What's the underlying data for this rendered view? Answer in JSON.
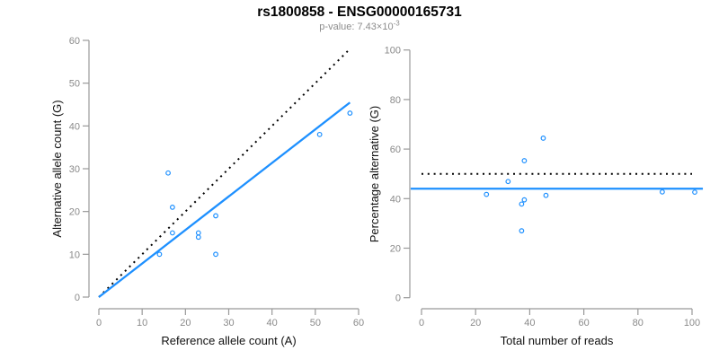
{
  "header": {
    "title": "rs1800858 - ENSG00000165731",
    "subtitle_prefix": "p-value: 7.43×10",
    "subtitle_exponent": "-3"
  },
  "colors": {
    "point_blue": "#1E90FF",
    "line_blue": "#1E90FF",
    "dotted_black": "#000000",
    "axis_gray": "#999999",
    "tick_label_gray": "#8a8a8a",
    "axis_title_black": "#111111"
  },
  "chart_data": [
    {
      "type": "scatter",
      "name": "allele-counts-scatter",
      "panel": "left",
      "xlabel": "Reference allele count (A)",
      "ylabel": "Alternative allele count (G)",
      "xlim": [
        0,
        60
      ],
      "ylim": [
        0,
        60
      ],
      "xticks": [
        0,
        10,
        20,
        30,
        40,
        50,
        60
      ],
      "yticks": [
        0,
        10,
        20,
        30,
        40,
        50,
        60
      ],
      "grid": false,
      "points": [
        [
          16,
          29
        ],
        [
          17,
          21
        ],
        [
          17,
          15
        ],
        [
          23,
          15
        ],
        [
          23,
          14
        ],
        [
          27,
          19
        ],
        [
          14,
          10
        ],
        [
          27,
          10
        ],
        [
          51,
          38
        ],
        [
          58,
          43
        ]
      ],
      "lines": [
        {
          "name": "identity-line",
          "slope": 1,
          "intercept": 0,
          "x_range": [
            0,
            58
          ],
          "style": "dotted",
          "color_key": "dotted_black"
        },
        {
          "name": "fit-line",
          "slope": 0.784,
          "intercept": 0,
          "x_range": [
            0,
            58
          ],
          "style": "solid",
          "color_key": "line_blue"
        }
      ]
    },
    {
      "type": "scatter",
      "name": "percentage-vs-reads-scatter",
      "panel": "right",
      "xlabel": "Total number of reads",
      "ylabel": "Percentage alternative (G)",
      "xlim": [
        0,
        100
      ],
      "ylim": [
        0,
        100
      ],
      "xticks": [
        0,
        20,
        40,
        60,
        80,
        100
      ],
      "yticks": [
        0,
        20,
        40,
        60,
        80,
        100
      ],
      "grid": false,
      "points": [
        [
          45,
          64.4
        ],
        [
          38,
          55.3
        ],
        [
          32,
          46.9
        ],
        [
          38,
          39.5
        ],
        [
          37,
          37.8
        ],
        [
          46,
          41.3
        ],
        [
          24,
          41.7
        ],
        [
          37,
          27.0
        ],
        [
          89,
          42.7
        ],
        [
          101,
          42.6
        ]
      ],
      "lines": [
        {
          "name": "expected-50pct-line",
          "y": 50,
          "x_range": [
            0,
            100
          ],
          "style": "dotted",
          "color_key": "dotted_black"
        },
        {
          "name": "mean-pct-line",
          "y": 44,
          "x_range": [
            -4,
            104
          ],
          "style": "solid",
          "color_key": "line_blue"
        }
      ]
    }
  ]
}
